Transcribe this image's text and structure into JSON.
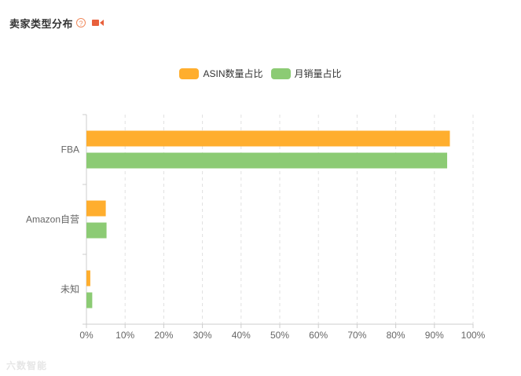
{
  "header": {
    "title": "卖家类型分布",
    "help_icon": "question-circle-icon",
    "video_icon": "video-camera-icon"
  },
  "legend": [
    {
      "label": "ASIN数量占比",
      "color": "#ffae2e"
    },
    {
      "label": "月销量占比",
      "color": "#8ccb74"
    }
  ],
  "chart_data": {
    "type": "bar",
    "orientation": "horizontal",
    "categories": [
      "FBA",
      "Amazon自营",
      "未知"
    ],
    "series": [
      {
        "name": "ASIN数量占比",
        "color": "#ffae2e",
        "values": [
          94,
          5,
          1
        ]
      },
      {
        "name": "月销量占比",
        "color": "#8ccb74",
        "values": [
          93.3,
          5.2,
          1.5
        ]
      }
    ],
    "xlim": [
      0,
      100
    ],
    "x_ticks": [
      "0%",
      "10%",
      "20%",
      "30%",
      "40%",
      "50%",
      "60%",
      "70%",
      "80%",
      "90%",
      "100%"
    ],
    "grid": "vertical-dashed",
    "legend_position": "top-center"
  },
  "watermark": "六数智能"
}
